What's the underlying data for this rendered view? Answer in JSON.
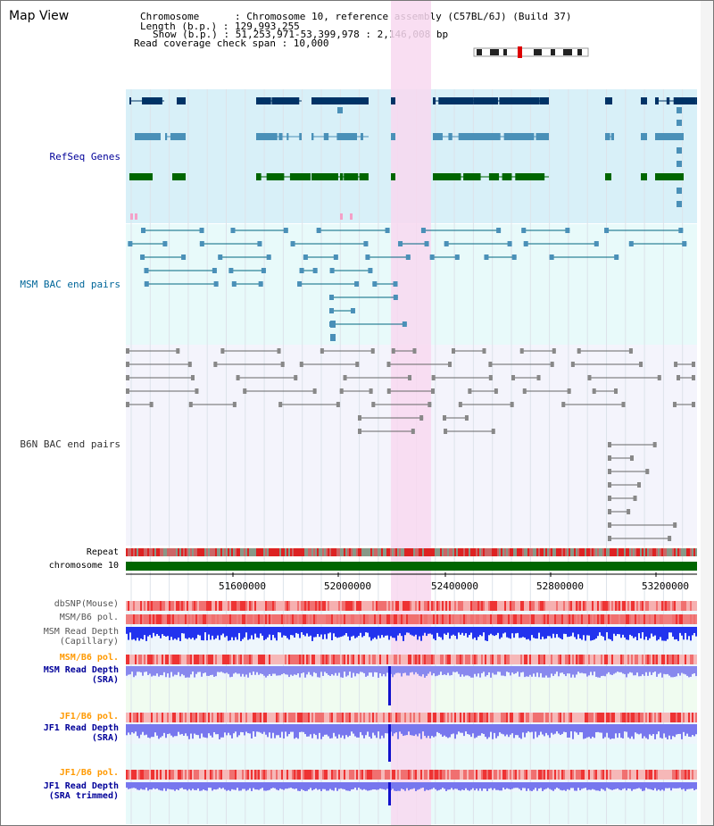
{
  "title": "Map View",
  "info": {
    "chromosome": "Chromosome      : Chromosome 10, reference assembly (C57BL/6J) (Build 37)",
    "length": "Length (b.p.) : 129,993,255",
    "show": "Show (b.p.) : 51,253,971-53,399,978 : 2,146,008 bp",
    "span": "Read coverage check span : 10,000"
  },
  "tracks": [
    {
      "label": "RefSeq Genes",
      "color": "#000099"
    },
    {
      "label": "MSM BAC end pairs",
      "color": "#006699"
    },
    {
      "label": "B6N BAC end pairs",
      "color": "#333333"
    }
  ],
  "small_labels": {
    "repeat": "Repeat",
    "chromosome": "chromosome 10"
  },
  "ticks": [
    "51600000",
    "52000000",
    "52400000",
    "52800000",
    "53200000"
  ],
  "lower_tracks": [
    {
      "key": "dbsnp",
      "label": "dbSNP(Mouse)",
      "color": "#555555"
    },
    {
      "key": "msm_pol",
      "label": "MSM/B6 pol.",
      "color": "#555555"
    },
    {
      "key": "msm_depth_cap",
      "label": "MSM Read Depth\n(Capillary)",
      "color": "#555555"
    },
    {
      "key": "msm_pol2",
      "label": "MSM/B6 pol.",
      "color": "#ff9900"
    },
    {
      "key": "msm_depth_sra",
      "label": "MSM Read Depth\n(SRA)",
      "color": "#000099"
    },
    {
      "key": "jf1_pol",
      "label": "JF1/B6 pol.",
      "color": "#ff9900"
    },
    {
      "key": "jf1_depth_sra",
      "label": "JF1 Read Depth\n(SRA)",
      "color": "#000099"
    },
    {
      "key": "jf1_pol2",
      "label": "JF1/B6 pol.",
      "color": "#ff9900"
    },
    {
      "key": "jf1_depth_trim",
      "label": "JF1 Read Depth\n(SRA trimmed)",
      "color": "#000099"
    }
  ],
  "colors": {
    "refseq_bg": "#d8f0f8",
    "msm_bac_bg": "#e8fafa",
    "b6n_bac_bg": "#f4f4fc",
    "highlight": "#f8d8f0",
    "gene_dark": "#003366",
    "gene_mid": "#4a90b8",
    "gene_green": "#006600",
    "bac_line": "#006680",
    "b6n_line": "#666666",
    "chrom_bar": "#006600",
    "depth_blue": "#2222ee",
    "pol_red": "#ee3333"
  }
}
